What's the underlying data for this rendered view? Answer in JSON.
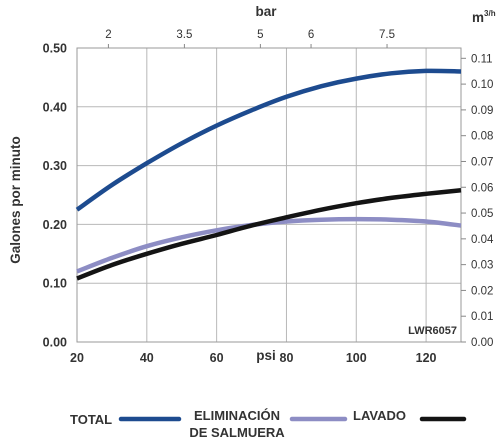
{
  "chart_data": {
    "type": "line",
    "model_label": "LWR6057",
    "xlabel": "psi",
    "ylabel": "Galones por minuto",
    "top_xlabel": "bar",
    "right_ylabel": "m3/h",
    "xlim": [
      20,
      130
    ],
    "ylim": [
      0,
      0.5
    ],
    "right_ylim": [
      0,
      0.114
    ],
    "top_xlim": [
      1.38,
      8.96
    ],
    "x_ticks": [
      "20",
      "40",
      "60",
      "80",
      "100",
      "120"
    ],
    "y_ticks": [
      "0.00",
      "0.10",
      "0.20",
      "0.30",
      "0.40",
      "0.50"
    ],
    "top_ticks": [
      "2",
      "3.5",
      "5",
      "6",
      "7.5"
    ],
    "top_tick_values": [
      2,
      3.5,
      5,
      6,
      7.5
    ],
    "right_ticks": [
      "0.00",
      "0.01",
      "0.02",
      "0.03",
      "0.04",
      "0.05",
      "0.06",
      "0.07",
      "0.08",
      "0.09",
      "0.10",
      "0.11"
    ],
    "grid": true,
    "legend_position": "bottom",
    "x": [
      20,
      30,
      40,
      50,
      60,
      70,
      80,
      90,
      100,
      110,
      120,
      130
    ],
    "series": [
      {
        "name": "TOTAL",
        "color": "#1d4b8f",
        "values": [
          0.225,
          0.267,
          0.304,
          0.338,
          0.368,
          0.394,
          0.417,
          0.435,
          0.448,
          0.457,
          0.461,
          0.46
        ]
      },
      {
        "name": "ELIMINACIÓN DE SALMUERA",
        "color": "#8d8dc4",
        "values": [
          0.12,
          0.143,
          0.163,
          0.178,
          0.19,
          0.199,
          0.205,
          0.208,
          0.209,
          0.208,
          0.205,
          0.198
        ]
      },
      {
        "name": "LAVADO",
        "color": "#141414",
        "values": [
          0.108,
          0.131,
          0.15,
          0.167,
          0.182,
          0.198,
          0.212,
          0.225,
          0.236,
          0.245,
          0.252,
          0.258
        ]
      }
    ]
  }
}
